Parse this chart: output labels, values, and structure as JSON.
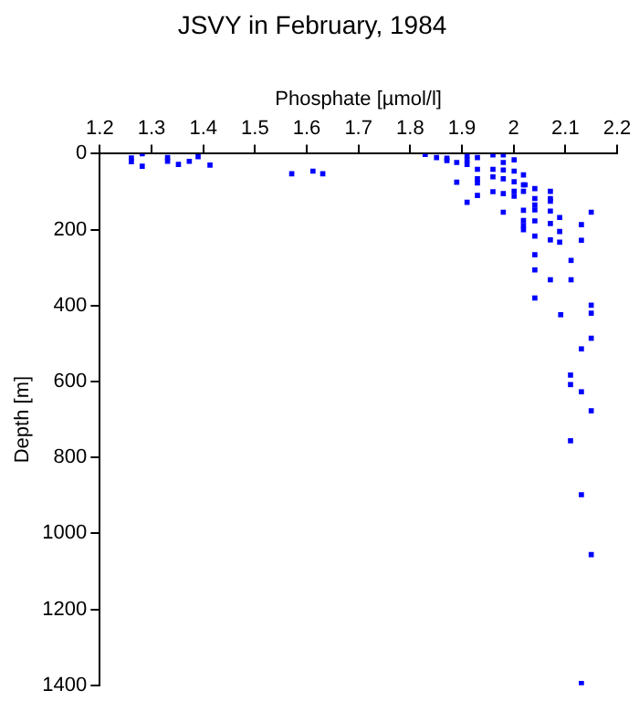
{
  "chart_data": {
    "type": "scatter",
    "title": "JSVY in February, 1984",
    "xlabel": "Phosphate [µmol/l]",
    "ylabel": "Depth [m]",
    "xlim": [
      1.2,
      2.2
    ],
    "xticks": [
      1.2,
      1.3,
      1.4,
      1.5,
      1.6,
      1.7,
      1.8,
      1.9,
      2,
      2.1,
      2.2
    ],
    "ylim": [
      1400,
      0
    ],
    "yticks": [
      0,
      200,
      400,
      600,
      800,
      1000,
      1200,
      1400
    ],
    "grid": false,
    "legend": false,
    "marker": "square",
    "series": [
      {
        "color": "#0000ff",
        "x": [
          1.261,
          1.261,
          1.282,
          1.282,
          1.331,
          1.331,
          1.352,
          1.373,
          1.39,
          1.413,
          1.571,
          1.612,
          1.631,
          1.829,
          1.851,
          1.871,
          1.871,
          1.89,
          1.89,
          1.91,
          1.91,
          1.91,
          1.91,
          1.93,
          1.93,
          1.93,
          1.93,
          1.93,
          1.96,
          1.96,
          1.96,
          1.96,
          1.98,
          1.98,
          1.98,
          1.98,
          1.98,
          1.98,
          2.001,
          2.001,
          2.001,
          2.001,
          2.001,
          2.019,
          2.019,
          2.019,
          2.019,
          2.019,
          2.019,
          2.019,
          2.022,
          2.041,
          2.041,
          2.041,
          2.041,
          2.041,
          2.041,
          2.041,
          2.041,
          2.041,
          2.071,
          2.071,
          2.071,
          2.071,
          2.071,
          2.071,
          2.071,
          2.089,
          2.089,
          2.089,
          2.091,
          2.111,
          2.111,
          2.131,
          2.131,
          2.15,
          2.15,
          2.15,
          2.15,
          2.131,
          2.11,
          2.11,
          2.131,
          2.15,
          2.11,
          2.131,
          2.15,
          2.131
        ],
        "values": [
          11,
          21,
          0,
          33,
          10,
          20,
          28,
          20,
          8,
          30,
          53,
          46,
          53,
          2,
          10,
          12,
          18,
          23,
          75,
          5,
          16,
          28,
          128,
          10,
          41,
          66,
          77,
          110,
          3,
          41,
          61,
          100,
          3,
          23,
          43,
          66,
          105,
          154,
          16,
          46,
          74,
          99,
          112,
          56,
          82,
          99,
          149,
          176,
          189,
          200,
          82,
          92,
          118,
          135,
          148,
          177,
          217,
          266,
          306,
          380,
          99,
          118,
          125,
          151,
          184,
          227,
          332,
          168,
          205,
          233,
          424,
          281,
          332,
          187,
          228,
          154,
          399,
          420,
          486,
          514,
          583,
          608,
          627,
          677,
          756,
          898,
          1056,
          1395
        ]
      }
    ]
  }
}
